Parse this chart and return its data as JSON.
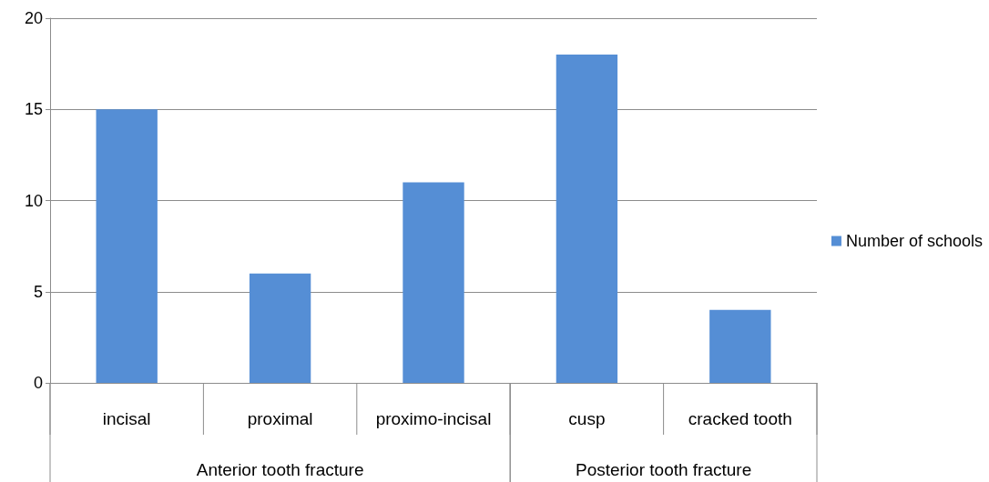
{
  "chart_data": {
    "type": "bar",
    "categories": [
      "incisal",
      "proximal",
      "proximo-incisal",
      "cusp",
      "cracked tooth"
    ],
    "series": [
      {
        "name": "Number of schools",
        "color": "#558ed5",
        "values": [
          15,
          6,
          11,
          18,
          4
        ]
      }
    ],
    "ylim": [
      0,
      20
    ],
    "yticks": [
      0,
      5,
      10,
      15,
      20
    ],
    "grid": "y",
    "legend": "right",
    "annotations": [
      "Anterior tooth fracture",
      "Posterior tooth fracture"
    ]
  }
}
